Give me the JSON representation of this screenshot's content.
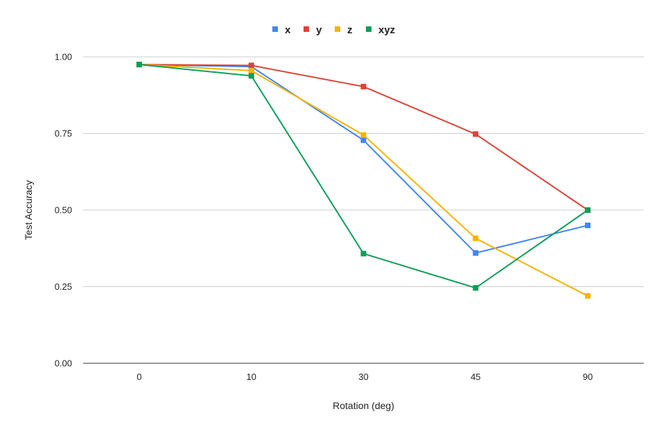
{
  "chart_data": {
    "type": "line",
    "title": "",
    "xlabel": "Rotation (deg)",
    "ylabel": "Test Accuracy",
    "categories": [
      "0",
      "10",
      "30",
      "45",
      "90"
    ],
    "ylim": [
      0,
      1
    ],
    "yticks": [
      "0.00",
      "0.25",
      "0.50",
      "0.75",
      "1.00"
    ],
    "legend_position": "top-center",
    "grid": true,
    "series": [
      {
        "name": "x",
        "color": "#4285F4",
        "values": [
          0.975,
          0.968,
          0.728,
          0.36,
          0.45
        ]
      },
      {
        "name": "y",
        "color": "#DB4437",
        "values": [
          0.975,
          0.972,
          0.903,
          0.748,
          0.5
        ]
      },
      {
        "name": "z",
        "color": "#F4B400",
        "values": [
          0.975,
          0.955,
          0.745,
          0.408,
          0.22
        ]
      },
      {
        "name": "xyz",
        "color": "#0F9D58",
        "values": [
          0.975,
          0.938,
          0.358,
          0.246,
          0.5
        ]
      }
    ]
  }
}
